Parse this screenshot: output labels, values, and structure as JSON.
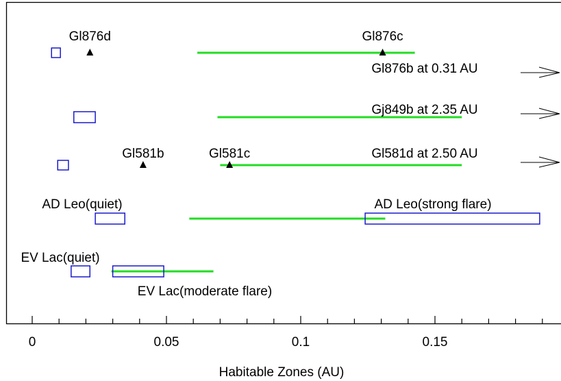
{
  "chart_data": {
    "type": "range",
    "xlabel": "Habitable Zones (AU)",
    "xlim": [
      -0.0095,
      0.198
    ],
    "x_ticks": [
      0,
      0.05,
      0.1,
      0.15
    ],
    "x_tick_labels": [
      "0",
      "0.05",
      "0.1",
      "0.15"
    ],
    "x_minor_step": 0.01,
    "grid": false,
    "colors": {
      "habitable_zone": "#22dd22",
      "flare_zone": "#1a1acc",
      "planet": "#000000"
    },
    "rows": [
      {
        "habitable_zone": [
          0.0615,
          0.1425
        ],
        "flare_boxes": [
          [
            0.0072,
            0.0105
          ]
        ],
        "planets": [
          {
            "name": "Gl876d",
            "x": 0.0215
          },
          {
            "name": "Gl876c",
            "x": 0.1305
          }
        ],
        "off_scale": {
          "label": "Gl876b at 0.31 AU"
        }
      },
      {
        "habitable_zone": [
          0.069,
          0.16
        ],
        "flare_boxes": [
          [
            0.0155,
            0.0235
          ]
        ],
        "planets": [],
        "off_scale": {
          "label": "Gj849b at 2.35 AU"
        }
      },
      {
        "habitable_zone": [
          0.07,
          0.16
        ],
        "flare_boxes": [
          [
            0.0095,
            0.0135
          ]
        ],
        "planets": [
          {
            "name": "Gl581b",
            "x": 0.0413
          },
          {
            "name": "Gl581c",
            "x": 0.0735
          }
        ],
        "off_scale": {
          "label": "Gl581d at 2.50 AU"
        }
      },
      {
        "habitable_zone": [
          0.0585,
          0.1315
        ],
        "flare_boxes": [
          [
            0.0235,
            0.0345
          ],
          [
            0.124,
            0.189
          ]
        ],
        "box_labels": [
          "AD Leo(quiet)",
          "AD Leo(strong flare)"
        ],
        "planets": []
      },
      {
        "habitable_zone": [
          0.0295,
          0.0675
        ],
        "flare_boxes": [
          [
            0.0145,
            0.0215
          ],
          [
            0.03,
            0.049
          ]
        ],
        "box_labels": [
          "EV Lac(quiet)",
          "EV Lac(moderate flare)"
        ],
        "planets": []
      }
    ]
  }
}
